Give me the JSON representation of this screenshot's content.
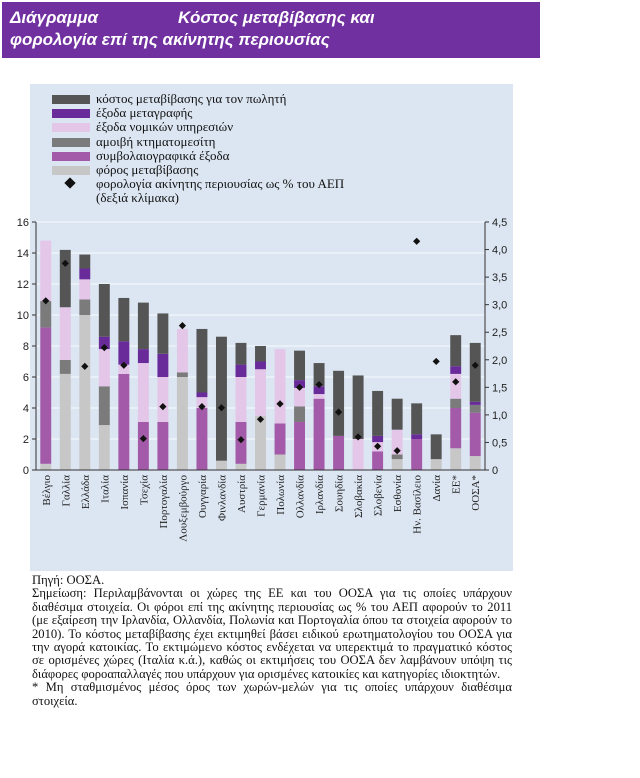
{
  "header": {
    "label": "Διάγραμμα",
    "title_line1": "Κόστος μεταβίβασης και",
    "title_line2": "φορολογία επί της ακίνητης περιουσίας"
  },
  "legend": [
    {
      "name": "κόστος μεταβίβασης για τον πωλητή",
      "color": "#555555"
    },
    {
      "name": "έξοδα μεταγραφής",
      "color": "#6a2b9a"
    },
    {
      "name": "έξοδα νομικών υπηρεσιών",
      "color": "#e3c6e8"
    },
    {
      "name": "αμοιβή κτηματομεσίτη",
      "color": "#7b7b7b"
    },
    {
      "name": "συμβολαιογραφικά έξοδα",
      "color": "#a35aa8"
    },
    {
      "name": "φόρος μεταβίβασης",
      "color": "#c7c7c7"
    }
  ],
  "legend_marker": {
    "line1": "φορολογία ακίνητης περιουσίας ως % του ΑΕΠ",
    "line2": "(δεξιά κλίμακα)"
  },
  "chart_data": {
    "type": "bar",
    "stacked": true,
    "categories": [
      "Βέλγιο",
      "Γαλλία",
      "Ελλάδα",
      "Ιταλία",
      "Ισπανία",
      "Τσεχία",
      "Πορτογαλία",
      "Λουξεμβούργο",
      "Ουγγαρία",
      "Φινλανδία",
      "Αυστρία",
      "Γερμανία",
      "Πολωνία",
      "Ολλανδία",
      "Ιρλανδία",
      "Σουηδία",
      "Σλοβακία",
      "Σλοβενία",
      "Εσθονία",
      "Ην. Βασίλειο",
      "Δανία",
      "ΕΕ*",
      "ΟΟΣΑ*"
    ],
    "left_axis": {
      "min": 0,
      "max": 16,
      "ticks": [
        "0",
        "2",
        "4",
        "6",
        "8",
        "10",
        "12",
        "14",
        "16"
      ]
    },
    "right_axis": {
      "min": 0,
      "max": 4.5,
      "ticks": [
        "0",
        "0,5",
        "1,0",
        "1,5",
        "2,0",
        "2,5",
        "3,0",
        "3,5",
        "4,0",
        "4,5"
      ]
    },
    "series": [
      {
        "name": "φόρος μεταβίβασης",
        "color": "#c7c7c7",
        "values": [
          0.4,
          6.2,
          10.0,
          2.9,
          0,
          0,
          0,
          6.0,
          0,
          0.6,
          0.4,
          3.5,
          1.0,
          0,
          0,
          0,
          0,
          0,
          0.7,
          0,
          0.7,
          1.4,
          0.9
        ]
      },
      {
        "name": "συμβολαιογραφικά έξοδα",
        "color": "#a35aa8",
        "values": [
          8.8,
          0,
          0,
          0,
          6.2,
          3.1,
          3.1,
          0,
          4.0,
          0,
          2.7,
          0,
          2.0,
          3.1,
          4.6,
          2.2,
          0,
          1.2,
          0,
          2.0,
          0,
          2.6,
          2.8
        ]
      },
      {
        "name": "αμοιβή κτηματομεσίτη",
        "color": "#7b7b7b",
        "values": [
          1.7,
          0.9,
          1.0,
          2.5,
          0,
          0,
          0,
          0.3,
          0,
          0,
          0,
          0,
          0,
          1.0,
          0,
          0,
          0,
          0,
          0.3,
          0,
          0,
          0.6,
          0.5
        ]
      },
      {
        "name": "έξοδα νομικών υπηρεσιών",
        "color": "#e3c6e8",
        "values": [
          3.9,
          3.4,
          1.3,
          2.4,
          0.6,
          3.8,
          2.9,
          2.8,
          0.7,
          0,
          2.9,
          3.0,
          4.8,
          1.2,
          0.3,
          0,
          2.0,
          0.6,
          1.6,
          0,
          0,
          1.6,
          0
        ]
      },
      {
        "name": "έξοδα μεταγραφής",
        "color": "#6a2b9a",
        "values": [
          0,
          0,
          0.7,
          0.8,
          1.5,
          0.9,
          1.5,
          0,
          0.3,
          0,
          0.8,
          0.5,
          0,
          0.5,
          0.5,
          0,
          0,
          0.4,
          0,
          0.3,
          0,
          0.5,
          0.2
        ]
      },
      {
        "name": "κόστος μεταβίβασης για τον πωλητή",
        "color": "#555555",
        "values": [
          0,
          3.7,
          0.9,
          3.4,
          2.8,
          3.0,
          2.6,
          0,
          4.1,
          8.0,
          1.4,
          1.0,
          0,
          1.9,
          1.5,
          4.2,
          4.1,
          2.9,
          2.0,
          2.0,
          1.6,
          2.0,
          3.8
        ]
      },
      {
        "name": "φορολογία ακίνητης περιουσίας ως % του ΑΕΠ",
        "type": "scatter",
        "axis": "right",
        "marker": "diamond",
        "values": [
          3.07,
          3.75,
          1.88,
          2.22,
          1.9,
          0.57,
          1.15,
          2.62,
          1.15,
          1.13,
          0.55,
          0.92,
          1.2,
          1.5,
          1.55,
          1.05,
          0.6,
          0.43,
          0.35,
          4.15,
          1.97,
          1.6,
          1.9
        ]
      }
    ]
  },
  "notes": {
    "source": "Πηγή: ΟΟΣΑ.",
    "note": "Σημείωση: Περιλαμβάνονται οι χώρες της ΕΕ και του ΟΟΣΑ για τις οποίες υπάρχουν διαθέσιμα στοιχεία. Οι φόροι επί της ακίνητης περιουσίας ως % του ΑΕΠ αφορούν το 2011 (με εξαίρεση την Ιρλανδία, Ολλανδία, Πολωνία και Πορτογαλία όπου τα στοιχεία αφορούν το 2010). Το κόστος μεταβίβασης έχει εκτιμηθεί βάσει ειδικού ερωτηματολογίου του ΟΟΣΑ για την αγορά κατοικίας. Το εκτιμώμενο κόστος ενδέχεται να υπερεκτιμά το πραγματικό κόστος σε ορισμένες χώρες (Ιταλία κ.ά.), καθώς οι εκτιμήσεις του ΟΟΣΑ δεν λαμβάνουν υπόψη τις διάφορες φοροαπαλλαγές που υπάρχουν για ορισμένες κατοικίες και κατηγορίες ιδιοκτητών.",
    "footnote": "* Μη σταθμισμένος μέσος όρος των χωρών-μελών για τις οποίες υπάρχουν διαθέσιμα στοιχεία."
  }
}
